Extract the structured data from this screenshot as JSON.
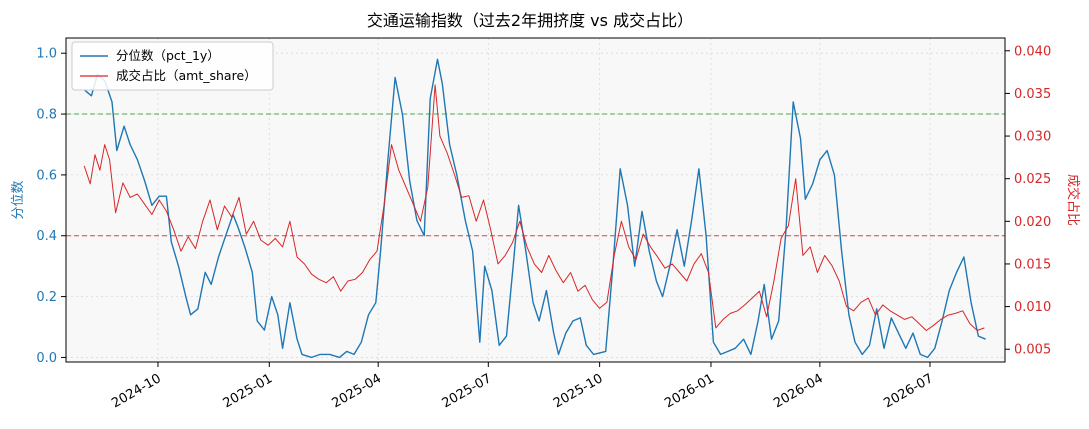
{
  "chart_data": {
    "type": "line",
    "title": "交通运输指数（过去2年拥挤度 vs 成交占比）",
    "xlabel": "",
    "x_ticks": [
      "2024-10",
      "2025-01",
      "2025-04",
      "2025-07",
      "2025-10",
      "2026-01",
      "2026-04",
      "2026-07"
    ],
    "x_range": [
      "2024-07-17",
      "2026-09-01"
    ],
    "left_axis": {
      "label": "分位数",
      "color": "#1f77b4",
      "ylim": [
        -0.015,
        1.05
      ],
      "ticks": [
        "0.0",
        "0.2",
        "0.4",
        "0.6",
        "0.8",
        "1.0"
      ],
      "tick_values": [
        0,
        0.2,
        0.4,
        0.6,
        0.8,
        1.0
      ]
    },
    "right_axis": {
      "label": "成交占比",
      "color": "#d62728",
      "ylim": [
        0.0035,
        0.0415
      ],
      "ticks": [
        "0.005",
        "0.010",
        "0.015",
        "0.020",
        "0.025",
        "0.030",
        "0.035",
        "0.040"
      ],
      "tick_values": [
        0.005,
        0.01,
        0.015,
        0.02,
        0.025,
        0.03,
        0.035,
        0.04
      ]
    },
    "reference_lines": [
      {
        "axis": "left",
        "value": 0.8,
        "color": "#2ca02c",
        "style": "dashed"
      },
      {
        "axis": "left",
        "value": 0.4,
        "color": "#d62728",
        "style": "dashed"
      }
    ],
    "grid": true,
    "legend_position": "top-left",
    "series": [
      {
        "name": "分位数（pct_1y）",
        "axis": "left",
        "color": "#1f77b4",
        "points": [
          [
            "2024-08-01",
            0.88
          ],
          [
            "2024-08-07",
            0.86
          ],
          [
            "2024-08-12",
            0.93
          ],
          [
            "2024-08-18",
            0.91
          ],
          [
            "2024-08-24",
            0.84
          ],
          [
            "2024-08-28",
            0.68
          ],
          [
            "2024-09-03",
            0.76
          ],
          [
            "2024-09-08",
            0.7
          ],
          [
            "2024-09-14",
            0.65
          ],
          [
            "2024-09-20",
            0.58
          ],
          [
            "2024-09-26",
            0.5
          ],
          [
            "2024-10-02",
            0.53
          ],
          [
            "2024-10-08",
            0.53
          ],
          [
            "2024-10-12",
            0.38
          ],
          [
            "2024-10-18",
            0.3
          ],
          [
            "2024-10-24",
            0.2
          ],
          [
            "2024-10-28",
            0.14
          ],
          [
            "2024-11-03",
            0.16
          ],
          [
            "2024-11-09",
            0.28
          ],
          [
            "2024-11-14",
            0.24
          ],
          [
            "2024-11-20",
            0.33
          ],
          [
            "2024-11-26",
            0.4
          ],
          [
            "2024-12-02",
            0.47
          ],
          [
            "2024-12-06",
            0.43
          ],
          [
            "2024-12-12",
            0.36
          ],
          [
            "2024-12-18",
            0.28
          ],
          [
            "2024-12-22",
            0.12
          ],
          [
            "2024-12-28",
            0.09
          ],
          [
            "2025-01-03",
            0.2
          ],
          [
            "2025-01-08",
            0.14
          ],
          [
            "2025-01-12",
            0.03
          ],
          [
            "2025-01-18",
            0.18
          ],
          [
            "2025-01-24",
            0.06
          ],
          [
            "2025-01-28",
            0.01
          ],
          [
            "2025-02-05",
            0.0
          ],
          [
            "2025-02-12",
            0.01
          ],
          [
            "2025-02-20",
            0.01
          ],
          [
            "2025-02-28",
            0.0
          ],
          [
            "2025-03-06",
            0.02
          ],
          [
            "2025-03-12",
            0.01
          ],
          [
            "2025-03-18",
            0.05
          ],
          [
            "2025-03-24",
            0.14
          ],
          [
            "2025-03-30",
            0.18
          ],
          [
            "2025-04-03",
            0.35
          ],
          [
            "2025-04-09",
            0.65
          ],
          [
            "2025-04-15",
            0.92
          ],
          [
            "2025-04-21",
            0.8
          ],
          [
            "2025-04-27",
            0.58
          ],
          [
            "2025-05-03",
            0.45
          ],
          [
            "2025-05-09",
            0.4
          ],
          [
            "2025-05-14",
            0.85
          ],
          [
            "2025-05-20",
            0.98
          ],
          [
            "2025-05-24",
            0.9
          ],
          [
            "2025-05-30",
            0.7
          ],
          [
            "2025-06-05",
            0.6
          ],
          [
            "2025-06-12",
            0.45
          ],
          [
            "2025-06-18",
            0.35
          ],
          [
            "2025-06-24",
            0.05
          ],
          [
            "2025-06-28",
            0.3
          ],
          [
            "2025-07-04",
            0.22
          ],
          [
            "2025-07-10",
            0.04
          ],
          [
            "2025-07-16",
            0.07
          ],
          [
            "2025-07-22",
            0.32
          ],
          [
            "2025-07-26",
            0.5
          ],
          [
            "2025-08-01",
            0.35
          ],
          [
            "2025-08-07",
            0.18
          ],
          [
            "2025-08-12",
            0.12
          ],
          [
            "2025-08-18",
            0.22
          ],
          [
            "2025-08-24",
            0.08
          ],
          [
            "2025-08-28",
            0.01
          ],
          [
            "2025-09-03",
            0.08
          ],
          [
            "2025-09-09",
            0.12
          ],
          [
            "2025-09-15",
            0.13
          ],
          [
            "2025-09-20",
            0.04
          ],
          [
            "2025-09-26",
            0.01
          ],
          [
            "2025-10-06",
            0.02
          ],
          [
            "2025-10-12",
            0.3
          ],
          [
            "2025-10-18",
            0.62
          ],
          [
            "2025-10-24",
            0.5
          ],
          [
            "2025-10-30",
            0.3
          ],
          [
            "2025-11-05",
            0.48
          ],
          [
            "2025-11-11",
            0.35
          ],
          [
            "2025-11-17",
            0.25
          ],
          [
            "2025-11-22",
            0.2
          ],
          [
            "2025-11-28",
            0.3
          ],
          [
            "2025-12-04",
            0.42
          ],
          [
            "2025-12-10",
            0.3
          ],
          [
            "2025-12-16",
            0.45
          ],
          [
            "2025-12-22",
            0.62
          ],
          [
            "2025-12-28",
            0.4
          ],
          [
            "2026-01-03",
            0.05
          ],
          [
            "2026-01-09",
            0.01
          ],
          [
            "2026-01-15",
            0.02
          ],
          [
            "2026-01-21",
            0.03
          ],
          [
            "2026-01-28",
            0.06
          ],
          [
            "2026-02-03",
            0.01
          ],
          [
            "2026-02-09",
            0.12
          ],
          [
            "2026-02-14",
            0.24
          ],
          [
            "2026-02-20",
            0.06
          ],
          [
            "2026-02-26",
            0.12
          ],
          [
            "2026-03-04",
            0.42
          ],
          [
            "2026-03-10",
            0.84
          ],
          [
            "2026-03-16",
            0.72
          ],
          [
            "2026-03-20",
            0.52
          ],
          [
            "2026-03-26",
            0.57
          ],
          [
            "2026-04-01",
            0.65
          ],
          [
            "2026-04-07",
            0.68
          ],
          [
            "2026-04-13",
            0.6
          ],
          [
            "2026-04-19",
            0.35
          ],
          [
            "2026-04-25",
            0.14
          ],
          [
            "2026-04-30",
            0.05
          ],
          [
            "2026-05-06",
            0.01
          ],
          [
            "2026-05-12",
            0.04
          ],
          [
            "2026-05-18",
            0.16
          ],
          [
            "2026-05-24",
            0.03
          ],
          [
            "2026-05-30",
            0.13
          ],
          [
            "2026-06-05",
            0.08
          ],
          [
            "2026-06-11",
            0.03
          ],
          [
            "2026-06-17",
            0.08
          ],
          [
            "2026-06-23",
            0.01
          ],
          [
            "2026-06-29",
            0.0
          ],
          [
            "2026-07-05",
            0.03
          ],
          [
            "2026-07-11",
            0.12
          ],
          [
            "2026-07-17",
            0.22
          ],
          [
            "2026-07-23",
            0.28
          ],
          [
            "2026-07-29",
            0.33
          ],
          [
            "2026-08-04",
            0.18
          ],
          [
            "2026-08-10",
            0.07
          ],
          [
            "2026-08-16",
            0.06
          ]
        ]
      },
      {
        "name": "成交占比（amt_share）",
        "axis": "right",
        "color": "#d62728",
        "points": [
          [
            "2024-08-01",
            0.0265
          ],
          [
            "2024-08-06",
            0.0244
          ],
          [
            "2024-08-10",
            0.0278
          ],
          [
            "2024-08-14",
            0.026
          ],
          [
            "2024-08-18",
            0.029
          ],
          [
            "2024-08-22",
            0.0272
          ],
          [
            "2024-08-27",
            0.021
          ],
          [
            "2024-09-02",
            0.0245
          ],
          [
            "2024-09-08",
            0.0228
          ],
          [
            "2024-09-14",
            0.0232
          ],
          [
            "2024-09-20",
            0.022
          ],
          [
            "2024-09-26",
            0.0208
          ],
          [
            "2024-10-02",
            0.0225
          ],
          [
            "2024-10-08",
            0.0212
          ],
          [
            "2024-10-14",
            0.019
          ],
          [
            "2024-10-20",
            0.0165
          ],
          [
            "2024-10-26",
            0.0182
          ],
          [
            "2024-11-01",
            0.0168
          ],
          [
            "2024-11-07",
            0.02
          ],
          [
            "2024-11-13",
            0.0225
          ],
          [
            "2024-11-19",
            0.019
          ],
          [
            "2024-11-25",
            0.0218
          ],
          [
            "2024-12-01",
            0.0205
          ],
          [
            "2024-12-07",
            0.0228
          ],
          [
            "2024-12-13",
            0.0185
          ],
          [
            "2024-12-19",
            0.02
          ],
          [
            "2024-12-25",
            0.0178
          ],
          [
            "2024-12-31",
            0.0172
          ],
          [
            "2025-01-06",
            0.018
          ],
          [
            "2025-01-12",
            0.017
          ],
          [
            "2025-01-18",
            0.02
          ],
          [
            "2025-01-24",
            0.0158
          ],
          [
            "2025-01-30",
            0.015
          ],
          [
            "2025-02-05",
            0.0138
          ],
          [
            "2025-02-11",
            0.0132
          ],
          [
            "2025-02-17",
            0.0128
          ],
          [
            "2025-02-23",
            0.0135
          ],
          [
            "2025-03-01",
            0.0118
          ],
          [
            "2025-03-07",
            0.013
          ],
          [
            "2025-03-13",
            0.0132
          ],
          [
            "2025-03-19",
            0.014
          ],
          [
            "2025-03-25",
            0.0155
          ],
          [
            "2025-03-31",
            0.0165
          ],
          [
            "2025-04-06",
            0.022
          ],
          [
            "2025-04-12",
            0.029
          ],
          [
            "2025-04-18",
            0.026
          ],
          [
            "2025-04-24",
            0.024
          ],
          [
            "2025-04-30",
            0.022
          ],
          [
            "2025-05-06",
            0.02
          ],
          [
            "2025-05-12",
            0.024
          ],
          [
            "2025-05-18",
            0.036
          ],
          [
            "2025-05-22",
            0.03
          ],
          [
            "2025-05-28",
            0.028
          ],
          [
            "2025-06-03",
            0.0255
          ],
          [
            "2025-06-09",
            0.0228
          ],
          [
            "2025-06-15",
            0.023
          ],
          [
            "2025-06-21",
            0.02
          ],
          [
            "2025-06-27",
            0.0225
          ],
          [
            "2025-07-03",
            0.019
          ],
          [
            "2025-07-09",
            0.015
          ],
          [
            "2025-07-15",
            0.016
          ],
          [
            "2025-07-21",
            0.0175
          ],
          [
            "2025-07-27",
            0.02
          ],
          [
            "2025-08-02",
            0.017
          ],
          [
            "2025-08-08",
            0.015
          ],
          [
            "2025-08-14",
            0.014
          ],
          [
            "2025-08-20",
            0.016
          ],
          [
            "2025-08-26",
            0.0142
          ],
          [
            "2025-09-01",
            0.0128
          ],
          [
            "2025-09-07",
            0.014
          ],
          [
            "2025-09-13",
            0.0118
          ],
          [
            "2025-09-19",
            0.0125
          ],
          [
            "2025-09-25",
            0.0108
          ],
          [
            "2025-10-01",
            0.0098
          ],
          [
            "2025-10-07",
            0.0105
          ],
          [
            "2025-10-13",
            0.016
          ],
          [
            "2025-10-19",
            0.02
          ],
          [
            "2025-10-25",
            0.017
          ],
          [
            "2025-10-31",
            0.0155
          ],
          [
            "2025-11-06",
            0.0185
          ],
          [
            "2025-11-12",
            0.017
          ],
          [
            "2025-11-18",
            0.0158
          ],
          [
            "2025-11-24",
            0.0145
          ],
          [
            "2025-11-30",
            0.015
          ],
          [
            "2025-12-06",
            0.014
          ],
          [
            "2025-12-12",
            0.013
          ],
          [
            "2025-12-18",
            0.015
          ],
          [
            "2025-12-24",
            0.0162
          ],
          [
            "2025-12-30",
            0.014
          ],
          [
            "2026-01-05",
            0.0075
          ],
          [
            "2026-01-11",
            0.0085
          ],
          [
            "2026-01-17",
            0.0092
          ],
          [
            "2026-01-23",
            0.0095
          ],
          [
            "2026-01-29",
            0.0102
          ],
          [
            "2026-02-04",
            0.011
          ],
          [
            "2026-02-10",
            0.0118
          ],
          [
            "2026-02-16",
            0.0088
          ],
          [
            "2026-02-22",
            0.013
          ],
          [
            "2026-02-28",
            0.018
          ],
          [
            "2026-03-06",
            0.0195
          ],
          [
            "2026-03-12",
            0.025
          ],
          [
            "2026-03-18",
            0.016
          ],
          [
            "2026-03-24",
            0.017
          ],
          [
            "2026-03-30",
            0.014
          ],
          [
            "2026-04-05",
            0.016
          ],
          [
            "2026-04-11",
            0.0148
          ],
          [
            "2026-04-17",
            0.013
          ],
          [
            "2026-04-23",
            0.01
          ],
          [
            "2026-04-29",
            0.0095
          ],
          [
            "2026-05-05",
            0.0105
          ],
          [
            "2026-05-11",
            0.011
          ],
          [
            "2026-05-17",
            0.009
          ],
          [
            "2026-05-23",
            0.0102
          ],
          [
            "2026-05-29",
            0.0095
          ],
          [
            "2026-06-04",
            0.009
          ],
          [
            "2026-06-10",
            0.0085
          ],
          [
            "2026-06-16",
            0.0088
          ],
          [
            "2026-06-22",
            0.008
          ],
          [
            "2026-06-28",
            0.0072
          ],
          [
            "2026-07-04",
            0.0078
          ],
          [
            "2026-07-10",
            0.0085
          ],
          [
            "2026-07-16",
            0.009
          ],
          [
            "2026-07-22",
            0.0092
          ],
          [
            "2026-07-28",
            0.0095
          ],
          [
            "2026-08-03",
            0.008
          ],
          [
            "2026-08-09",
            0.0072
          ],
          [
            "2026-08-15",
            0.0075
          ]
        ]
      }
    ]
  }
}
